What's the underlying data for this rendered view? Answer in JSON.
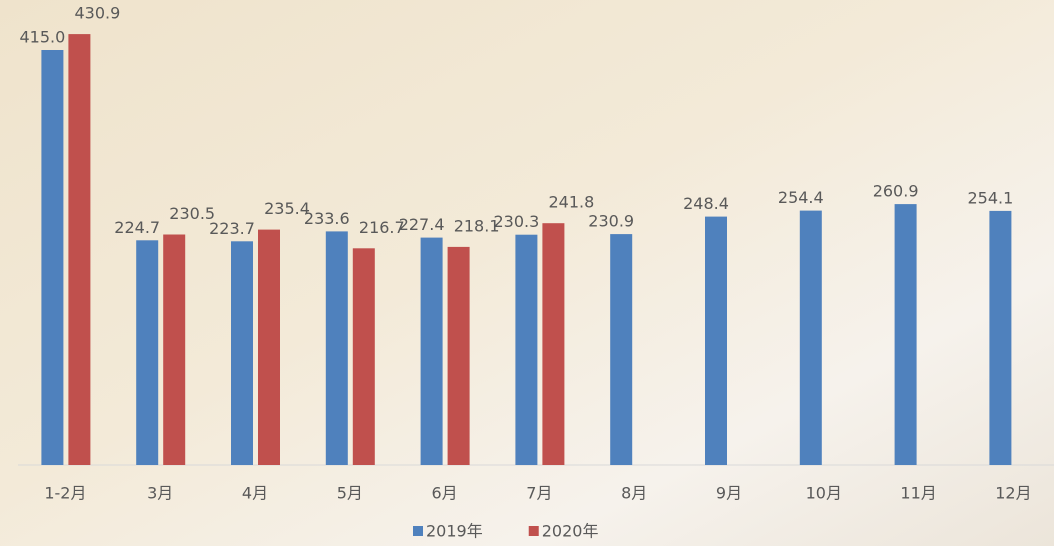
{
  "chart_data": {
    "type": "bar",
    "categories": [
      "1-2月",
      "3月",
      "4月",
      "5月",
      "6月",
      "7月",
      "8月",
      "9月",
      "10月",
      "11月",
      "12月"
    ],
    "series": [
      {
        "name": "2019年",
        "color": "#4f81bd",
        "values": [
          415.0,
          224.7,
          223.7,
          233.6,
          227.4,
          230.3,
          230.9,
          248.4,
          254.4,
          260.9,
          254.1
        ],
        "value_labels": [
          "415.0",
          "224.7",
          "223.7",
          "233.6",
          "227.4",
          "230.3",
          "230.9",
          "248.4",
          "254.4",
          "260.9",
          "254.1"
        ]
      },
      {
        "name": "2020年",
        "color": "#c0504d",
        "values": [
          430.9,
          230.5,
          235.4,
          216.7,
          218.1,
          241.8,
          null,
          null,
          null,
          null,
          null
        ],
        "value_labels": [
          "430.9",
          "230.5",
          "235.4",
          "216.7",
          "218.1",
          "241.8",
          null,
          null,
          null,
          null,
          null
        ]
      }
    ],
    "ylim": [
      0,
      450
    ],
    "legend": "bottom"
  }
}
